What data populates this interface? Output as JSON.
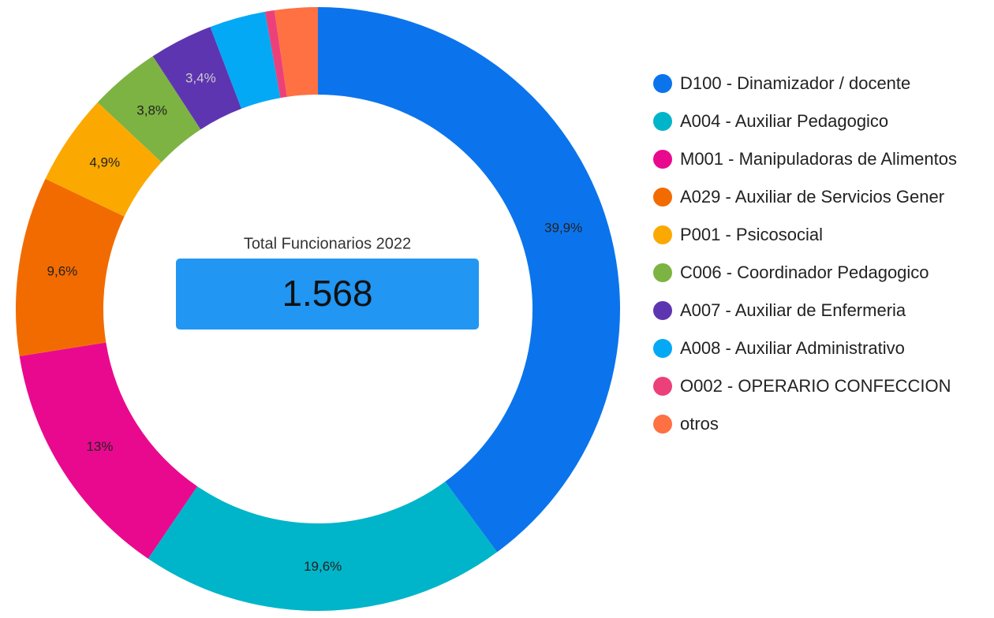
{
  "chart_data": {
    "type": "donut",
    "center_title": "Total Funcionarios 2022",
    "center_value": "1.568",
    "categories": [
      "D100 - Dinamizador / docente",
      "A004 - Auxiliar Pedagogico",
      "M001 - Manipuladoras de Alimentos",
      "A029 - Auxiliar de Servicios Gener",
      "P001 - Psicosocial",
      "C006 - Coordinador Pedagogico",
      "A007 - Auxiliar de Enfermeria",
      "A008 - Auxiliar Administrativo",
      "O002 - OPERARIO CONFECCION",
      "otros"
    ],
    "values": [
      39.9,
      19.6,
      13,
      9.6,
      4.9,
      3.8,
      3.4,
      3.0,
      0.5,
      2.3
    ],
    "value_labels": [
      "39,9%",
      "19,6%",
      "13%",
      "9,6%",
      "4,9%",
      "3,8%",
      "3,4%",
      null,
      null,
      null
    ],
    "colors": [
      "#0b74ec",
      "#00b5c9",
      "#e9098f",
      "#f26b00",
      "#fba900",
      "#7cb342",
      "#5e35b1",
      "#03a9f4",
      "#ec407a",
      "#ff7043"
    ],
    "legend": "right"
  }
}
